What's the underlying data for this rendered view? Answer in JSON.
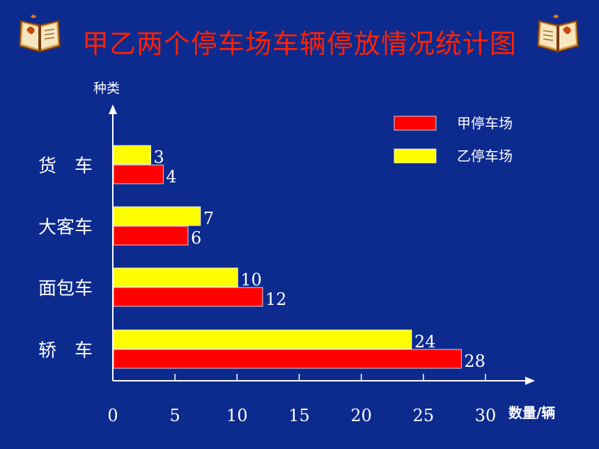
{
  "title": "甲乙两个停车场车辆停放情况统计图",
  "icons": {
    "left": "open-book-icon",
    "right": "open-book-icon"
  },
  "colors": {
    "background": "#0d2a8f",
    "title": "#ff2200",
    "series_a": "#ff0000",
    "series_b": "#ffff00"
  },
  "chart_data": {
    "type": "bar",
    "orientation": "horizontal",
    "title": "甲乙两个停车场车辆停放情况统计图",
    "ylabel": "种类",
    "xlabel": "数量/辆",
    "categories": [
      "货　车",
      "大客车",
      "面包车",
      "轿　车"
    ],
    "series": [
      {
        "name": "乙停车场",
        "values": [
          3,
          7,
          10,
          24
        ],
        "color": "#ffff00"
      },
      {
        "name": "甲停车场",
        "values": [
          4,
          6,
          12,
          28
        ],
        "color": "#ff0000"
      }
    ],
    "legend_order": [
      "甲停车场",
      "乙停车场"
    ],
    "xlim": [
      0,
      30
    ],
    "xticks": [
      "0",
      "5",
      "10",
      "15",
      "20",
      "25",
      "30"
    ],
    "legend_position": "top-right",
    "grid": false
  }
}
